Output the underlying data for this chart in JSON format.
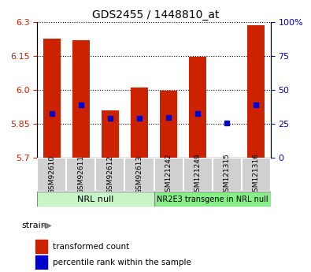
{
  "title": "GDS2455 / 1448810_at",
  "samples": [
    "GSM92610",
    "GSM92611",
    "GSM92612",
    "GSM92613",
    "GSM121242",
    "GSM121249",
    "GSM121315",
    "GSM121316"
  ],
  "bar_tops": [
    6.225,
    6.22,
    5.91,
    6.01,
    5.995,
    6.145,
    5.7,
    6.285
  ],
  "bar_bottom": 5.7,
  "percentile_values": [
    5.895,
    5.935,
    5.875,
    5.875,
    5.878,
    5.895,
    5.855,
    5.935
  ],
  "ylim": [
    5.7,
    6.3
  ],
  "yticks_left": [
    5.7,
    5.85,
    6.0,
    6.15,
    6.3
  ],
  "yticks_right": [
    0,
    25,
    50,
    75,
    100
  ],
  "bar_color": "#cc2200",
  "blue_color": "#0000cc",
  "bar_width": 0.6,
  "legend_red_label": "transformed count",
  "legend_blue_label": "percentile rank within the sample",
  "strain_label": "strain",
  "group1_label": "NRL null",
  "group1_color": "#c8f5c8",
  "group2_label": "NR2E3 transgene in NRL null",
  "group2_color": "#88ee88"
}
